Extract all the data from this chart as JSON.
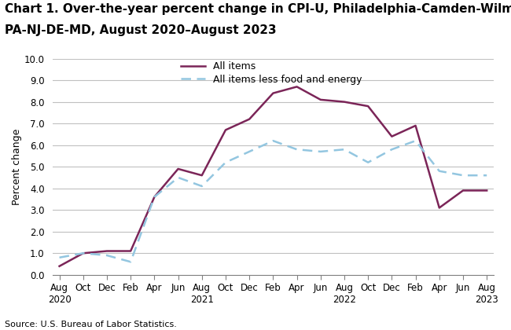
{
  "title_line1": "Chart 1. Over-the-year percent change in CPI-U, Philadelphia-Camden-Wilmington,",
  "title_line2": "PA-NJ-DE-MD, August 2020–August 2023",
  "ylabel": "Percent change",
  "source": "Source: U.S. Bureau of Labor Statistics.",
  "ylim": [
    0.0,
    10.0
  ],
  "yticks": [
    0.0,
    1.0,
    2.0,
    3.0,
    4.0,
    5.0,
    6.0,
    7.0,
    8.0,
    9.0,
    10.0
  ],
  "x_labels": [
    "Aug\n2020",
    "Oct",
    "Dec",
    "Feb",
    "Apr",
    "Jun",
    "Aug\n2021",
    "Oct",
    "Dec",
    "Feb",
    "Apr",
    "Jun",
    "Aug\n2022",
    "Oct",
    "Dec",
    "Feb",
    "Apr",
    "Jun",
    "Aug\n2023"
  ],
  "all_items": [
    0.4,
    1.0,
    1.1,
    1.1,
    3.6,
    4.9,
    4.6,
    6.7,
    7.2,
    8.4,
    8.7,
    8.1,
    8.0,
    7.8,
    6.4,
    6.9,
    3.1,
    3.9,
    3.9
  ],
  "all_items_less": [
    0.8,
    1.0,
    0.9,
    0.6,
    3.6,
    4.5,
    4.1,
    5.2,
    5.7,
    6.2,
    5.8,
    5.7,
    5.8,
    5.2,
    5.8,
    6.2,
    4.8,
    4.6,
    4.6
  ],
  "line1_color": "#7B2558",
  "line2_color": "#93C6E0",
  "line1_label": "All items",
  "line2_label": "All items less food and energy",
  "title_fontsize": 11,
  "label_fontsize": 9,
  "tick_fontsize": 8.5
}
